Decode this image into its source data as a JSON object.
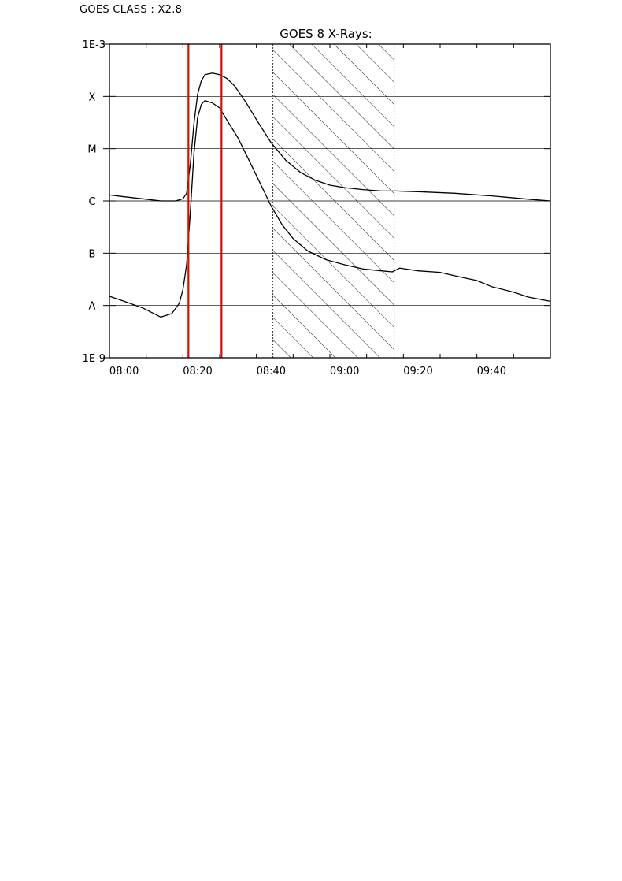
{
  "header": {
    "goes_class": "GOES CLASS : X2.8"
  },
  "chart_data": {
    "type": "line",
    "title": "GOES 8 X-Rays:",
    "xlabel": "",
    "ylabel": "",
    "x_unit": "UT time (HH:MM)",
    "xlim": [
      "07:56",
      "09:56"
    ],
    "ylim": [
      "1E-9",
      "1E-3"
    ],
    "y_scale": "log",
    "x_ticks": [
      "08:00",
      "08:20",
      "08:40",
      "09:00",
      "09:20",
      "09:40"
    ],
    "y_tick_labels": [
      {
        "value": 1e-09,
        "label": "1E-9"
      },
      {
        "value": 1e-08,
        "label": "A"
      },
      {
        "value": 1e-07,
        "label": "B"
      },
      {
        "value": 1e-06,
        "label": "C"
      },
      {
        "value": 1e-05,
        "label": "M"
      },
      {
        "value": 0.0001,
        "label": "X"
      },
      {
        "value": 0.001,
        "label": "1E-3"
      }
    ],
    "grid": "horizontal at class boundaries",
    "series": [
      {
        "points": [
          [
            "07:56",
            1.3e-06
          ],
          [
            "08:00",
            1.2e-06
          ],
          [
            "08:05",
            1.1e-06
          ],
          [
            "08:10",
            1e-06
          ],
          [
            "08:14",
            1e-06
          ],
          [
            "08:16",
            1.1e-06
          ],
          [
            "08:17",
            1.4e-06
          ],
          [
            "08:18",
            5e-06
          ],
          [
            "08:19",
            3e-05
          ],
          [
            "08:20",
            0.00011
          ],
          [
            "08:21",
            0.0002
          ],
          [
            "08:22",
            0.00026
          ],
          [
            "08:24",
            0.00028
          ],
          [
            "08:26",
            0.00026
          ],
          [
            "08:28",
            0.00022
          ],
          [
            "08:30",
            0.00016
          ],
          [
            "08:33",
            8e-05
          ],
          [
            "08:36",
            3.6e-05
          ],
          [
            "08:40",
            1.3e-05
          ],
          [
            "08:44",
            6e-06
          ],
          [
            "08:48",
            3.5e-06
          ],
          [
            "08:52",
            2.5e-06
          ],
          [
            "08:56",
            2e-06
          ],
          [
            "09:00",
            1.8e-06
          ],
          [
            "09:05",
            1.65e-06
          ],
          [
            "09:10",
            1.55e-06
          ],
          [
            "09:14",
            1.55e-06
          ],
          [
            "09:20",
            1.5e-06
          ],
          [
            "09:30",
            1.4e-06
          ],
          [
            "09:40",
            1.25e-06
          ],
          [
            "09:50",
            1.08e-06
          ],
          [
            "09:56",
            1e-06
          ]
        ]
      },
      {
        "points": [
          [
            "07:56",
            1.5e-08
          ],
          [
            "08:00",
            1.2e-08
          ],
          [
            "08:05",
            9e-09
          ],
          [
            "08:10",
            6e-09
          ],
          [
            "08:13",
            7e-09
          ],
          [
            "08:15",
            1.1e-08
          ],
          [
            "08:16",
            2e-08
          ],
          [
            "08:17",
            6e-08
          ],
          [
            "08:18",
            6e-07
          ],
          [
            "08:19",
            8e-06
          ],
          [
            "08:20",
            4e-05
          ],
          [
            "08:21",
            7e-05
          ],
          [
            "08:22",
            8.3e-05
          ],
          [
            "08:24",
            7.5e-05
          ],
          [
            "08:26",
            6e-05
          ],
          [
            "08:28",
            3.5e-05
          ],
          [
            "08:31",
            1.6e-05
          ],
          [
            "08:34",
            6e-06
          ],
          [
            "08:37",
            2.2e-06
          ],
          [
            "08:40",
            8e-07
          ],
          [
            "08:43",
            3.5e-07
          ],
          [
            "08:46",
            1.9e-07
          ],
          [
            "08:50",
            1.1e-07
          ],
          [
            "08:55",
            7.5e-08
          ],
          [
            "09:00",
            6e-08
          ],
          [
            "09:05",
            5e-08
          ],
          [
            "09:10",
            4.6e-08
          ],
          [
            "09:13",
            4.4e-08
          ],
          [
            "09:14",
            4.8e-08
          ],
          [
            "09:15",
            5.2e-08
          ],
          [
            "09:20",
            4.6e-08
          ],
          [
            "09:26",
            4.3e-08
          ],
          [
            "09:30",
            3.7e-08
          ],
          [
            "09:36",
            3e-08
          ],
          [
            "09:40",
            2.3e-08
          ],
          [
            "09:46",
            1.8e-08
          ],
          [
            "09:50",
            1.45e-08
          ],
          [
            "09:56",
            1.2e-08
          ]
        ]
      }
    ],
    "markers": {
      "red_lines": [
        "08:17.5",
        "08:26.5"
      ],
      "hatched_interval": [
        "08:40.5",
        "09:13.5"
      ],
      "red_color": "#cc1111"
    }
  }
}
